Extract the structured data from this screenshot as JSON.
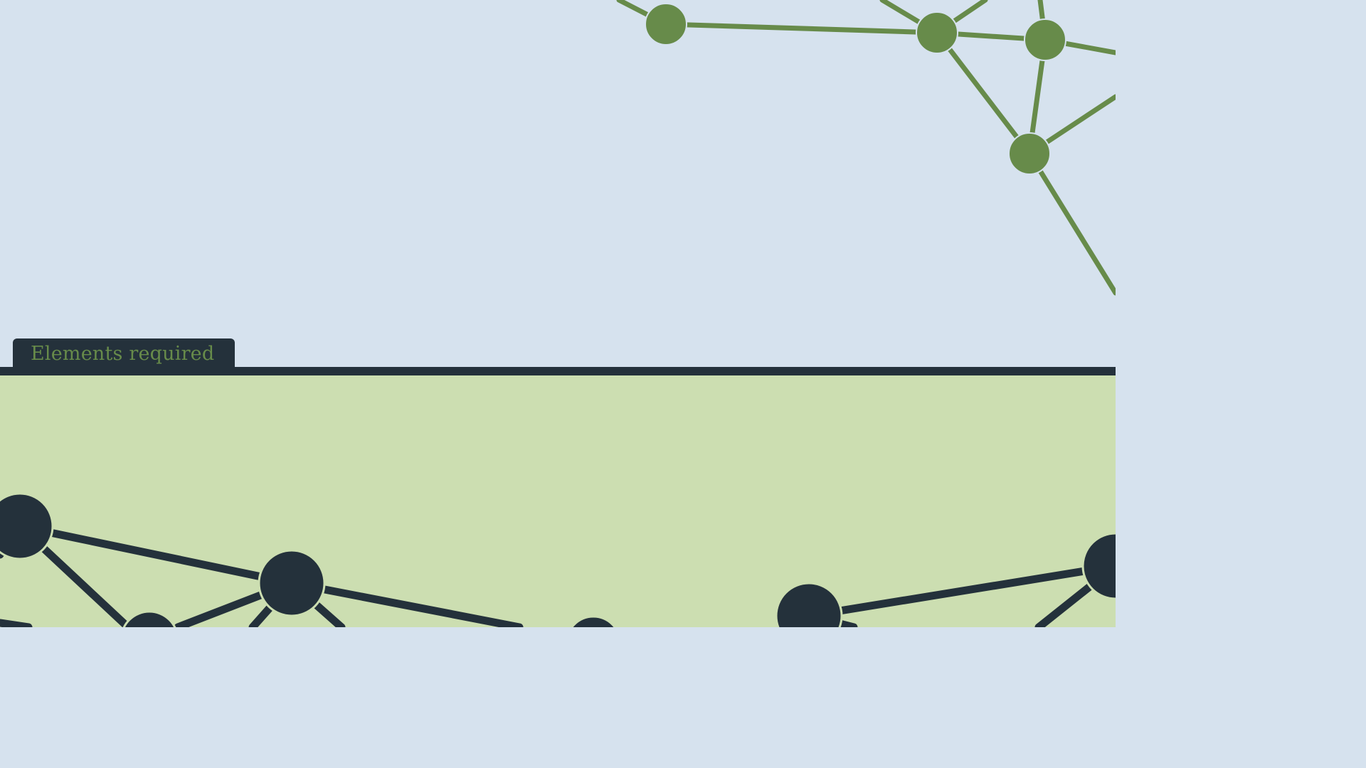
{
  "tab": {
    "label": "Elements required"
  },
  "colors": {
    "top_background": "#d6e2ee",
    "bottom_background": "#ccdeb1",
    "dark": "#24313b",
    "green": "#678b4a"
  },
  "icons": [
    "network-graph-top",
    "network-graph-bottom"
  ]
}
